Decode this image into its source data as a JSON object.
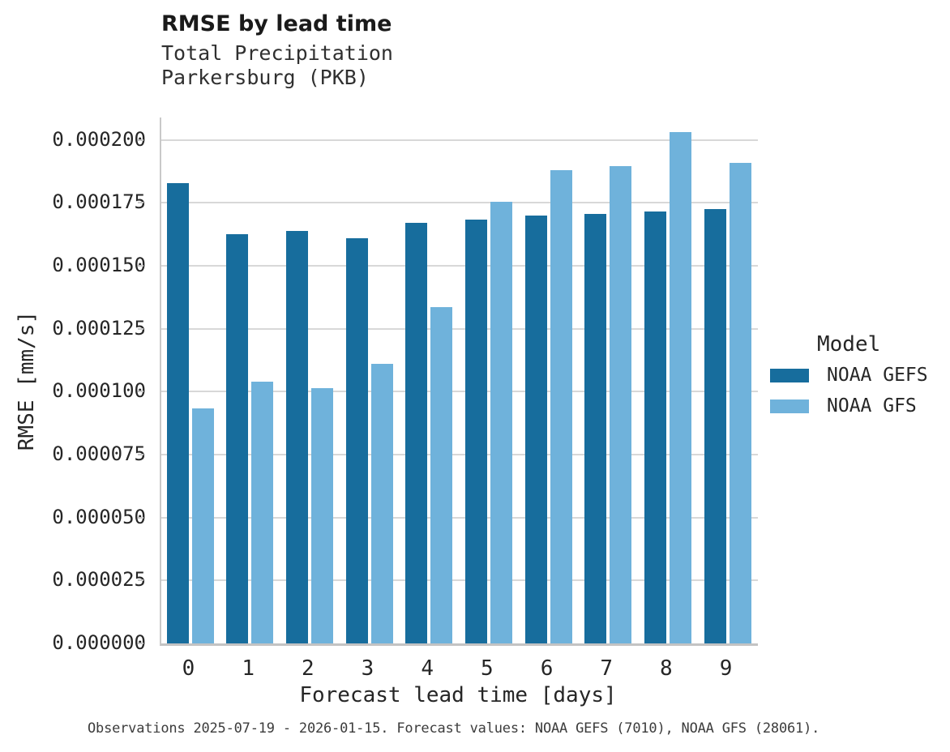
{
  "accent_colors": {
    "gefs_dark_blue": "#176d9d",
    "gfs_light_blue": "#6fb2db",
    "gridline_gray": "#d8d8d8",
    "axis_gray": "#c9c9c9"
  },
  "chart_data": {
    "type": "bar",
    "title": "RMSE by lead time",
    "subtitle": "Total Precipitation\nParkersburg (PKB)",
    "xlabel": "Forecast lead time [days]",
    "ylabel": "RMSE [mm/s]",
    "categories": [
      "0",
      "1",
      "2",
      "3",
      "4",
      "5",
      "6",
      "7",
      "8",
      "9"
    ],
    "series": [
      {
        "name": "NOAA GEFS",
        "color": "#176d9d",
        "values": [
          0.000183,
          0.0001625,
          0.000164,
          0.000161,
          0.000167,
          0.0001685,
          0.00017,
          0.0001705,
          0.0001715,
          0.0001725
        ]
      },
      {
        "name": "NOAA GFS",
        "color": "#6fb2db",
        "values": [
          9.33e-05,
          0.000104,
          0.0001015,
          0.000111,
          0.0001335,
          0.0001755,
          0.000188,
          0.0001895,
          0.000203,
          0.000191
        ]
      }
    ],
    "y_ticks": [
      "0.000000",
      "0.000025",
      "0.000050",
      "0.000075",
      "0.000100",
      "0.000125",
      "0.000150",
      "0.000175",
      "0.000200"
    ],
    "y_tick_step": 2.5e-05,
    "ylim": [
      0,
      0.000209
    ],
    "grid": "horizontal-only",
    "legend_title": "Model",
    "legend_position": "right",
    "caption": "Observations 2025-07-19 - 2026-01-15. Forecast values: NOAA GEFS (7010), NOAA GFS (28061)."
  }
}
